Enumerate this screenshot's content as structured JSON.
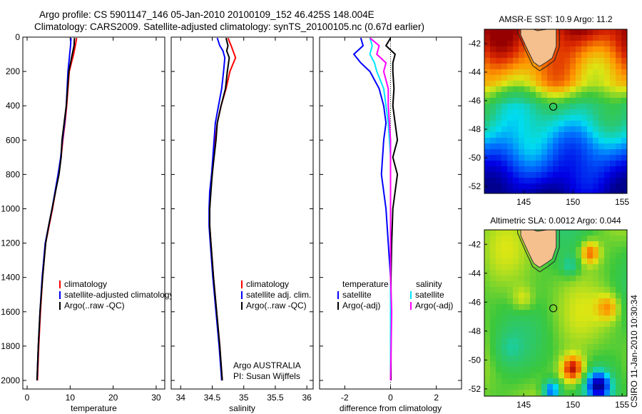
{
  "header": {
    "line1": "Argo profile: CS 5901147_146 05-Jan-2010 20100109_152 46.425S 148.004E",
    "line2": "Climatology: CARS2009. Satellite-adjusted climatology: synTS_20100105.nc (0.67d earlier)"
  },
  "colors": {
    "climatology": "#ff0000",
    "satellite": "#0000ff",
    "argo": "#000000",
    "cyan": "#00e5ff",
    "magenta": "#ff00ff"
  },
  "chart_data": [
    {
      "type": "line",
      "id": "temperature",
      "xlabel": "temperature",
      "ylabel": "",
      "xlim": [
        -1,
        32
      ],
      "ylim": [
        2050,
        0
      ],
      "xticks": [
        0,
        10,
        20,
        30
      ],
      "yticks": [
        0,
        200,
        400,
        600,
        800,
        1000,
        1200,
        1400,
        1600,
        1800,
        2000
      ],
      "legend": [
        "climatology",
        "satellite-adjusted climatology",
        "Argo(..raw -QC)"
      ],
      "series": [
        {
          "name": "climatology",
          "color": "#ff0000",
          "x": [
            11.5,
            11.2,
            10.8,
            10.3,
            9.8,
            9.5,
            9.2,
            8.8,
            8.3,
            7.9,
            7.3,
            6.6,
            5.9,
            5.1,
            4.3,
            3.6,
            3.1,
            2.7,
            2.4
          ],
          "y": [
            5,
            50,
            100,
            150,
            200,
            300,
            400,
            500,
            600,
            700,
            800,
            900,
            1000,
            1100,
            1200,
            1400,
            1600,
            1800,
            2000
          ]
        },
        {
          "name": "satellite-adjusted climatology",
          "color": "#0000ff",
          "x": [
            10.2,
            10.1,
            9.9,
            9.7,
            9.5,
            9.3,
            9.1,
            8.7,
            8.2,
            7.8,
            7.2,
            6.5,
            5.8,
            5.0,
            4.2,
            3.5,
            3.0,
            2.6,
            2.3
          ],
          "y": [
            5,
            50,
            100,
            150,
            200,
            300,
            400,
            500,
            600,
            700,
            800,
            900,
            1000,
            1100,
            1200,
            1400,
            1600,
            1800,
            2000
          ]
        },
        {
          "name": "Argo(..raw -QC)",
          "color": "#000000",
          "x": [
            11.0,
            10.9,
            10.5,
            10.1,
            9.7,
            9.4,
            9.1,
            8.6,
            8.1,
            7.9,
            7.4,
            6.6,
            5.8,
            5.0,
            4.3,
            3.6,
            3.0,
            2.6,
            2.3
          ],
          "y": [
            5,
            50,
            100,
            150,
            200,
            300,
            400,
            500,
            600,
            700,
            800,
            900,
            1000,
            1100,
            1200,
            1400,
            1600,
            1800,
            2000
          ]
        }
      ]
    },
    {
      "type": "line",
      "id": "salinity",
      "xlabel": "salinity",
      "xlim": [
        33.85,
        36.1
      ],
      "ylim": [
        2050,
        0
      ],
      "xticks": [
        34,
        34.5,
        35,
        35.5,
        36
      ],
      "legend": [
        "climatology",
        "satellite adj. clim.",
        "Argo(..raw -QC)"
      ],
      "annotation": [
        "Argo AUSTRALIA",
        "PI: Susan Wijffels"
      ],
      "series": [
        {
          "name": "climatology",
          "color": "#ff0000",
          "x": [
            34.75,
            34.8,
            34.83,
            34.87,
            34.78,
            34.72,
            34.64,
            34.58,
            34.55,
            34.52,
            34.5,
            34.47,
            34.46,
            34.46,
            34.48,
            34.52,
            34.57,
            34.62,
            34.66
          ],
          "y": [
            5,
            50,
            80,
            120,
            200,
            300,
            400,
            500,
            600,
            700,
            800,
            900,
            1000,
            1100,
            1200,
            1400,
            1600,
            1800,
            2000
          ]
        },
        {
          "name": "satellite adj. clim.",
          "color": "#0000ff",
          "x": [
            34.58,
            34.62,
            34.67,
            34.7,
            34.68,
            34.65,
            34.6,
            34.55,
            34.53,
            34.51,
            34.49,
            34.46,
            34.45,
            34.45,
            34.47,
            34.51,
            34.56,
            34.61,
            34.65
          ],
          "y": [
            5,
            50,
            80,
            120,
            200,
            300,
            400,
            500,
            600,
            700,
            800,
            900,
            1000,
            1100,
            1200,
            1400,
            1600,
            1800,
            2000
          ]
        },
        {
          "name": "Argo(..raw -QC)",
          "color": "#000000",
          "x": [
            34.72,
            34.75,
            34.73,
            34.77,
            34.74,
            34.71,
            34.64,
            34.58,
            34.56,
            34.53,
            34.5,
            34.48,
            34.46,
            34.46,
            34.48,
            34.52,
            34.57,
            34.62,
            34.66
          ],
          "y": [
            5,
            50,
            80,
            120,
            200,
            300,
            400,
            500,
            600,
            700,
            800,
            900,
            1000,
            1100,
            1200,
            1400,
            1600,
            1800,
            2000
          ]
        }
      ]
    },
    {
      "type": "line",
      "id": "difference",
      "xlabel": "difference from climatology",
      "xlim": [
        -3.1,
        3.1
      ],
      "ylim": [
        2050,
        0
      ],
      "xticks": [
        -2,
        0,
        2
      ],
      "legend_left": [
        "temperature",
        "satellite",
        "Argo(-adj)"
      ],
      "legend_right": [
        "salinity",
        "satellite",
        "Argo(-adj)"
      ],
      "series": [
        {
          "name": "satellite",
          "group": "temperature",
          "color": "#0000ff",
          "x": [
            -1.3,
            -1.2,
            -1.6,
            -1.3,
            -0.9,
            -0.5,
            -0.3,
            -0.2,
            -0.3,
            -0.35,
            -0.4,
            -0.3,
            -0.2,
            -0.1,
            0,
            0,
            0
          ],
          "y": [
            5,
            50,
            100,
            150,
            200,
            300,
            400,
            500,
            600,
            700,
            800,
            900,
            1000,
            1200,
            1400,
            1600,
            2000
          ]
        },
        {
          "name": "Argo(-adj)",
          "group": "temperature",
          "color": "#000000",
          "x": [
            0,
            -0.2,
            0.2,
            0.1,
            0.1,
            0.15,
            0.1,
            0.2,
            0.3,
            0.1,
            0.3,
            0.2,
            0.1,
            0.05,
            0.02,
            0.02,
            0.02
          ],
          "y": [
            5,
            50,
            100,
            150,
            200,
            300,
            400,
            500,
            600,
            700,
            800,
            900,
            1000,
            1200,
            1400,
            1600,
            2000
          ]
        },
        {
          "name": "satellite",
          "group": "salinity",
          "color": "#00e5ff",
          "x": [
            -0.9,
            -0.8,
            -0.9,
            -0.7,
            -0.6,
            -0.3,
            -0.2,
            -0.1,
            -0.05,
            0,
            0,
            0,
            0,
            0,
            0,
            0,
            0
          ],
          "y": [
            5,
            50,
            100,
            150,
            200,
            300,
            400,
            500,
            600,
            700,
            800,
            900,
            1000,
            1200,
            1400,
            1600,
            2000
          ]
        },
        {
          "name": "Argo(-adj)",
          "group": "salinity",
          "color": "#ff00ff",
          "x": [
            -0.9,
            -0.5,
            -0.6,
            -0.2,
            -0.3,
            -0.1,
            -0.1,
            -0.05,
            0,
            0,
            0,
            0,
            0,
            0,
            0,
            0.05,
            0
          ],
          "y": [
            5,
            50,
            100,
            150,
            200,
            300,
            400,
            500,
            600,
            700,
            800,
            900,
            1000,
            1200,
            1400,
            1600,
            2000
          ]
        }
      ]
    },
    {
      "type": "heatmap",
      "id": "sst-map",
      "title": "AMSR-E SST: 10.9 Argo: 11.2",
      "xlim": [
        141,
        155.5
      ],
      "ylim": [
        -52.5,
        -41
      ],
      "xticks": [
        145,
        150,
        155
      ],
      "yticks": [
        -42,
        -44,
        -46,
        -48,
        -50,
        -52
      ],
      "argo_position": {
        "lon": 148.004,
        "lat": -46.425
      }
    },
    {
      "type": "heatmap",
      "id": "sla-map",
      "title": "Altimetric SLA: 0.0012 Argo: 0.044",
      "xlim": [
        141,
        155.5
      ],
      "ylim": [
        -52.5,
        -41
      ],
      "xticks": [
        145,
        150,
        155
      ],
      "yticks": [
        -42,
        -44,
        -46,
        -48,
        -50,
        -52
      ],
      "argo_position": {
        "lon": 148.004,
        "lat": -46.425
      }
    }
  ],
  "side_label": "CSIRO 11-Jan-2010 10:30:34"
}
